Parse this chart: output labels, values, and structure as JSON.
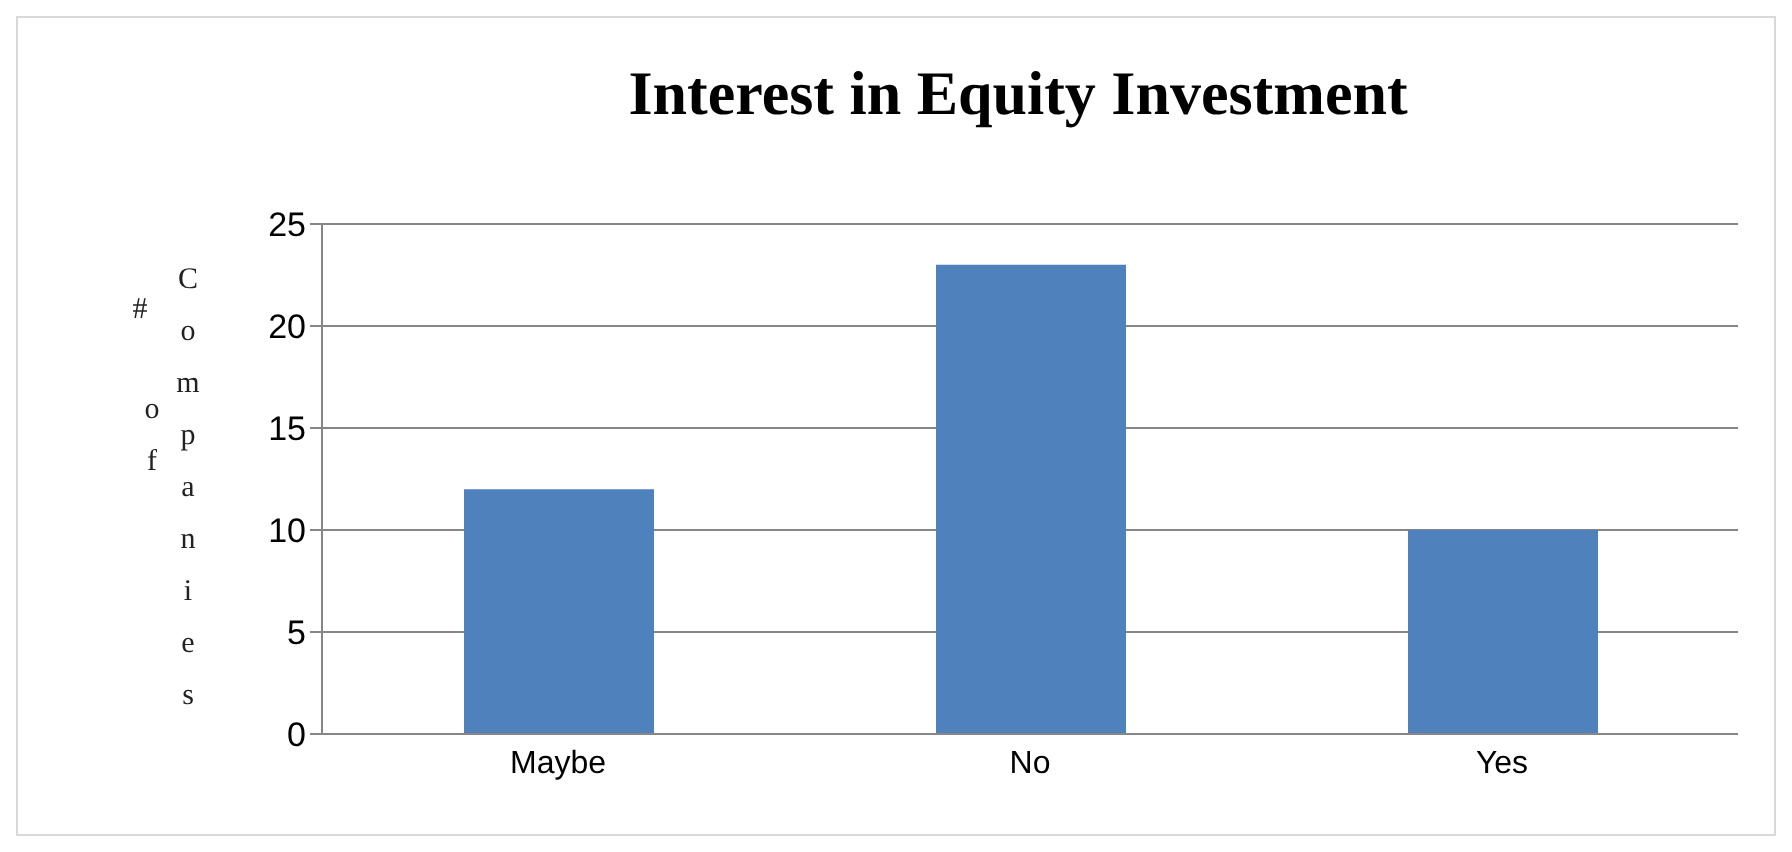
{
  "chart_data": {
    "type": "bar",
    "title": "Interest in Equity Investment",
    "ylabel": "# of Companies",
    "categories": [
      "Maybe",
      "No",
      "Yes"
    ],
    "values": [
      12,
      23,
      10
    ],
    "color": "#4f81bd",
    "ylim": [
      0,
      25
    ],
    "yticks": [
      0,
      5,
      10,
      15,
      20,
      25
    ],
    "grid": "y"
  }
}
